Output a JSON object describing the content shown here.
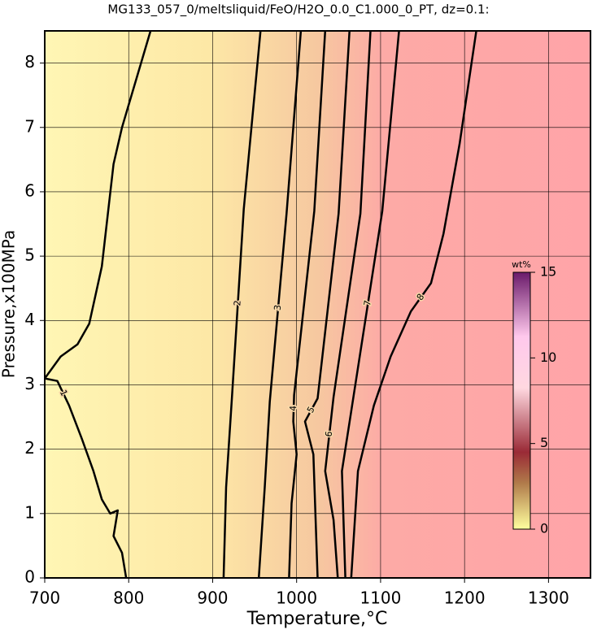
{
  "chart_data": {
    "type": "contour",
    "title": "MG133_057_0/meltsliquid/FeO/H2O_0.0_C1.000_0_PT, dz=0.1:",
    "x_label": "Temperature,°C",
    "y_label": "Pressure,x100MPa",
    "xlim": [
      700,
      1350
    ],
    "ylim": [
      0,
      8.5
    ],
    "xticks": [
      700,
      800,
      900,
      1000,
      1100,
      1200,
      1300
    ],
    "yticks": [
      0,
      1,
      2,
      3,
      4,
      5,
      6,
      7,
      8
    ],
    "grid": true,
    "contours": [
      {
        "level": 1,
        "x": [
          826,
          792,
          782,
          768,
          753,
          739,
          719,
          700,
          715,
          729,
          744,
          758,
          768,
          778,
          787,
          782,
          792,
          797
        ],
        "y": [
          8.5,
          7.0,
          6.43,
          4.84,
          3.95,
          3.63,
          3.44,
          3.1,
          3.06,
          2.68,
          2.17,
          1.66,
          1.22,
          1.0,
          1.05,
          0.65,
          0.39,
          0
        ]
      },
      {
        "level": 2,
        "x": [
          957,
          937,
          923,
          916,
          913
        ],
        "y": [
          8.5,
          5.73,
          2.81,
          1.41,
          0
        ]
      },
      {
        "level": 3,
        "x": [
          1005,
          988,
          968,
          962,
          955
        ],
        "y": [
          8.5,
          5.66,
          2.74,
          1.41,
          0
        ]
      },
      {
        "level": 4,
        "x": [
          1034,
          1021,
          997,
          996,
          1000,
          994,
          991
        ],
        "y": [
          8.5,
          5.7,
          2.84,
          2.43,
          1.92,
          1.16,
          0
        ]
      },
      {
        "level": 5,
        "x": [
          1063,
          1050,
          1025,
          1010,
          1020,
          1025
        ],
        "y": [
          8.5,
          5.66,
          2.79,
          2.43,
          1.92,
          0
        ]
      },
      {
        "level": 6,
        "x": [
          1088,
          1076,
          1044,
          1034,
          1044,
          1049
        ],
        "y": [
          8.5,
          5.66,
          2.81,
          1.66,
          0.9,
          0
        ]
      },
      {
        "level": 7,
        "x": [
          1122,
          1102,
          1068,
          1054,
          1058
        ],
        "y": [
          8.5,
          5.7,
          2.84,
          1.66,
          0
        ]
      },
      {
        "level": 8,
        "x": [
          1214,
          1194,
          1175,
          1160,
          1136,
          1112,
          1092,
          1073,
          1065
        ],
        "y": [
          8.5,
          6.74,
          5.35,
          4.58,
          4.14,
          3.44,
          2.68,
          1.66,
          0
        ]
      }
    ],
    "colorbar": {
      "label": "wt%",
      "lim": [
        0,
        15
      ],
      "ticks": [
        0,
        5,
        10,
        15
      ]
    }
  }
}
